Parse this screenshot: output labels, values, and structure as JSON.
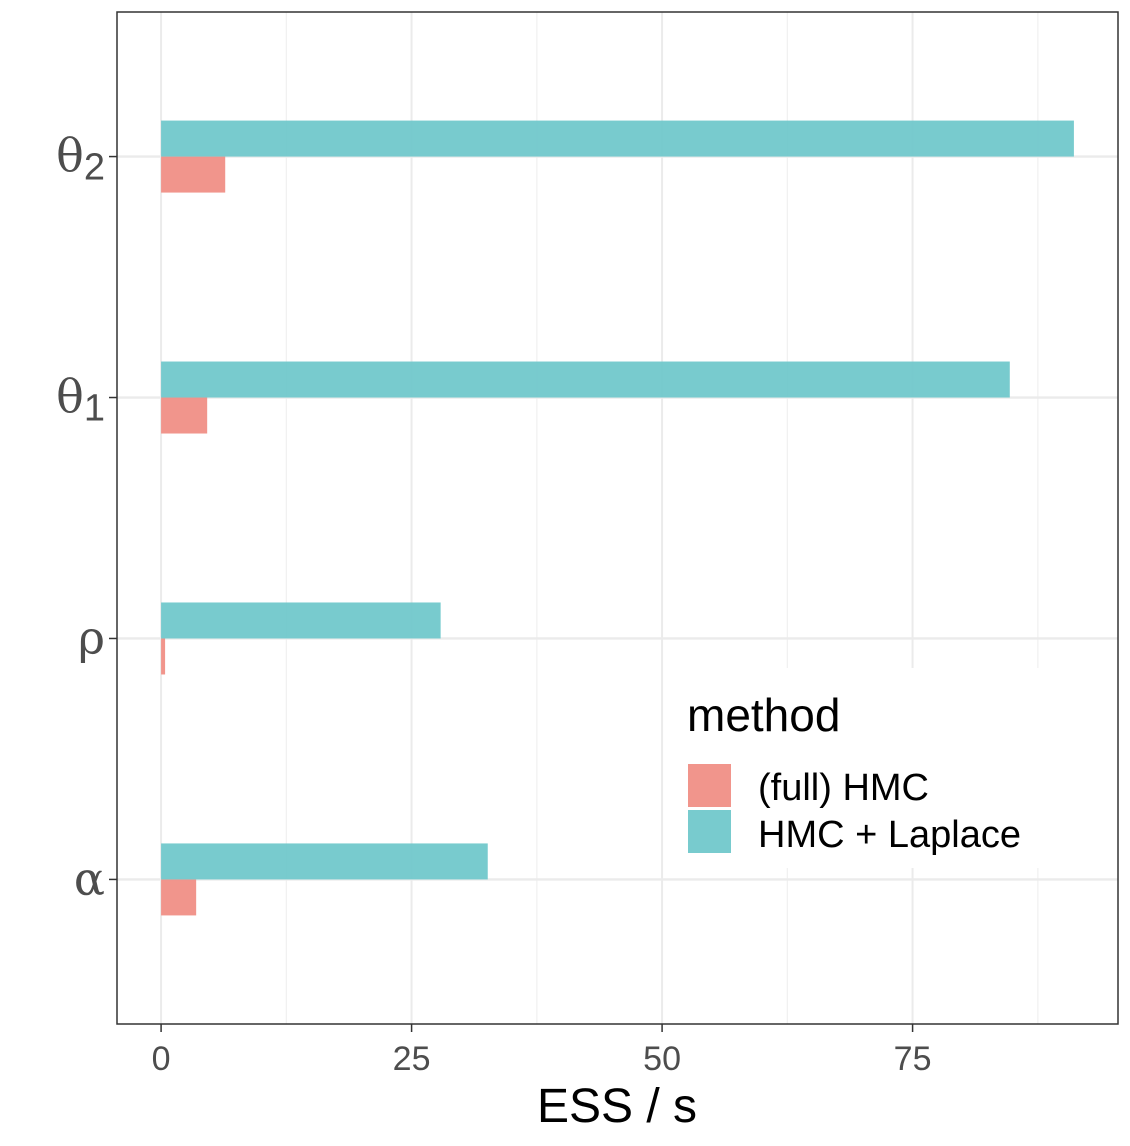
{
  "chart_data": {
    "type": "bar",
    "orientation": "horizontal",
    "categories": [
      "α",
      "ρ",
      "θ1",
      "θ2"
    ],
    "category_labels": [
      {
        "base": "α",
        "sub": ""
      },
      {
        "base": "ρ",
        "sub": ""
      },
      {
        "base": "θ",
        "sub": "1"
      },
      {
        "base": "θ",
        "sub": "2"
      }
    ],
    "series": [
      {
        "name": "(full) HMC",
        "color": "#F08C82",
        "values": [
          3.5,
          0.4,
          4.6,
          6.4
        ]
      },
      {
        "name": "HMC + Laplace",
        "color": "#6CC7CA",
        "values": [
          32.6,
          27.9,
          84.7,
          91.1
        ]
      }
    ],
    "xlabel": "ESS / s",
    "ylabel": "",
    "xlim": [
      -4.4,
      95.5
    ],
    "xticks": [
      0,
      25,
      50,
      75
    ],
    "grid": true,
    "legend": {
      "title": "method",
      "position": "inside-right"
    }
  }
}
